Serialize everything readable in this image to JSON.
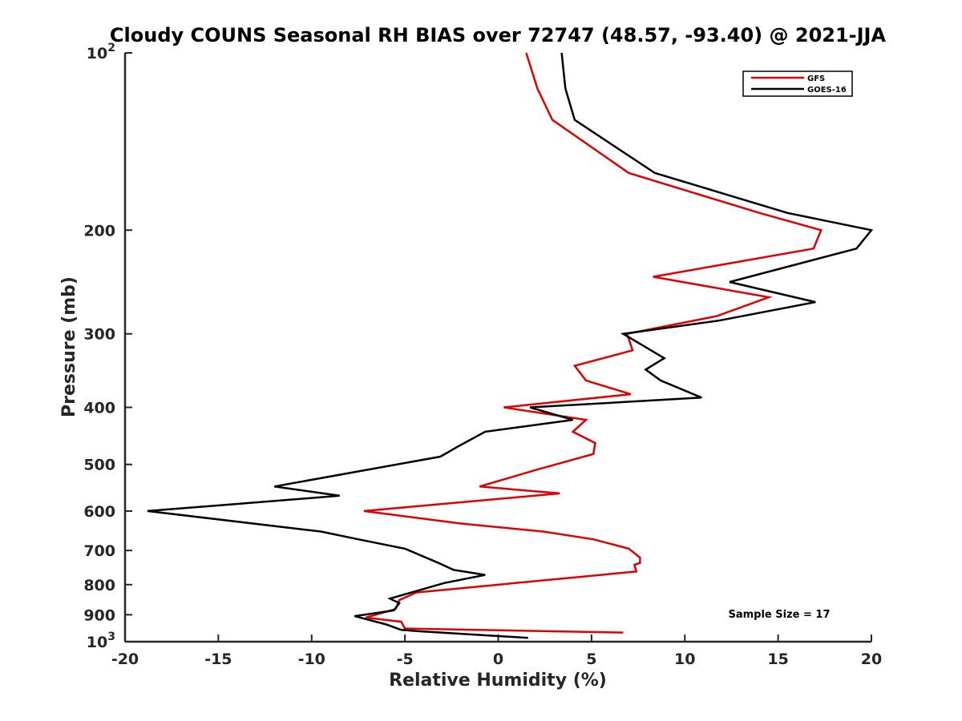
{
  "chart_data": {
    "type": "line",
    "title": "Cloudy COUNS Seasonal RH BIAS over 72747 (48.57, -93.40) @ 2021-JJA",
    "xlabel": "Relative Humidity (%)",
    "ylabel": "Pressure (mb)",
    "xlim": [
      -20,
      20
    ],
    "ylim": [
      100,
      1000
    ],
    "yscale": "log",
    "y_reversed": true,
    "grid": false,
    "legend_position": "top-right",
    "x_ticks": [
      -20,
      -15,
      -10,
      -5,
      0,
      5,
      10,
      15,
      20
    ],
    "x_tick_labels": [
      "-20",
      "-15",
      "-10",
      "-5",
      "0",
      "5",
      "10",
      "15",
      "20"
    ],
    "y_ticks": [
      {
        "value": 100,
        "base": "10",
        "exp": "2"
      },
      {
        "value": 200,
        "label": "200"
      },
      {
        "value": 300,
        "label": "300"
      },
      {
        "value": 400,
        "label": "400"
      },
      {
        "value": 500,
        "label": "500"
      },
      {
        "value": 600,
        "label": "600"
      },
      {
        "value": 700,
        "label": "700"
      },
      {
        "value": 800,
        "label": "800"
      },
      {
        "value": 900,
        "label": "900"
      },
      {
        "value": 1000,
        "base": "10",
        "exp": "3"
      }
    ],
    "series": [
      {
        "name": "GFS",
        "color": "#e00000",
        "points": [
          {
            "x": 1.5,
            "p": 100
          },
          {
            "x": 2.1,
            "p": 115
          },
          {
            "x": 2.9,
            "p": 130
          },
          {
            "x": 7.0,
            "p": 160
          },
          {
            "x": 14.0,
            "p": 187
          },
          {
            "x": 17.3,
            "p": 200
          },
          {
            "x": 16.9,
            "p": 215
          },
          {
            "x": 8.3,
            "p": 240
          },
          {
            "x": 14.5,
            "p": 260
          },
          {
            "x": 11.7,
            "p": 280
          },
          {
            "x": 6.9,
            "p": 300
          },
          {
            "x": 7.2,
            "p": 320
          },
          {
            "x": 4.1,
            "p": 340
          },
          {
            "x": 4.7,
            "p": 360
          },
          {
            "x": 7.1,
            "p": 380
          },
          {
            "x": 0.3,
            "p": 400
          },
          {
            "x": 4.7,
            "p": 420
          },
          {
            "x": 4.0,
            "p": 440
          },
          {
            "x": 5.2,
            "p": 460
          },
          {
            "x": 5.1,
            "p": 480
          },
          {
            "x": 2.1,
            "p": 510
          },
          {
            "x": -1.0,
            "p": 545
          },
          {
            "x": 3.3,
            "p": 560
          },
          {
            "x": -7.2,
            "p": 600
          },
          {
            "x": -2.0,
            "p": 630
          },
          {
            "x": 2.4,
            "p": 650
          },
          {
            "x": 5.1,
            "p": 670
          },
          {
            "x": 7.0,
            "p": 695
          },
          {
            "x": 7.6,
            "p": 720
          },
          {
            "x": 7.6,
            "p": 735
          },
          {
            "x": 7.3,
            "p": 740
          },
          {
            "x": 7.4,
            "p": 760
          },
          {
            "x": -4.4,
            "p": 825
          },
          {
            "x": -5.3,
            "p": 850
          },
          {
            "x": -5.5,
            "p": 880
          },
          {
            "x": -7.1,
            "p": 910
          },
          {
            "x": -5.2,
            "p": 925
          },
          {
            "x": -5.0,
            "p": 950
          },
          {
            "x": 6.7,
            "p": 965
          }
        ]
      },
      {
        "name": "GOES-16",
        "color": "#000000",
        "points": [
          {
            "x": 3.4,
            "p": 100
          },
          {
            "x": 3.6,
            "p": 115
          },
          {
            "x": 4.1,
            "p": 130
          },
          {
            "x": 8.4,
            "p": 160
          },
          {
            "x": 15.5,
            "p": 187
          },
          {
            "x": 20.0,
            "p": 200
          },
          {
            "x": 19.2,
            "p": 215
          },
          {
            "x": 12.4,
            "p": 245
          },
          {
            "x": 17.0,
            "p": 265
          },
          {
            "x": 11.8,
            "p": 285
          },
          {
            "x": 6.7,
            "p": 300
          },
          {
            "x": 8.9,
            "p": 330
          },
          {
            "x": 7.9,
            "p": 345
          },
          {
            "x": 8.7,
            "p": 360
          },
          {
            "x": 10.9,
            "p": 385
          },
          {
            "x": 1.7,
            "p": 400
          },
          {
            "x": 4.0,
            "p": 420
          },
          {
            "x": -0.7,
            "p": 440
          },
          {
            "x": -2.1,
            "p": 465
          },
          {
            "x": -3.1,
            "p": 485
          },
          {
            "x": -12.0,
            "p": 545
          },
          {
            "x": -8.5,
            "p": 565
          },
          {
            "x": -18.8,
            "p": 600
          },
          {
            "x": -9.5,
            "p": 650
          },
          {
            "x": -7.5,
            "p": 670
          },
          {
            "x": -5.0,
            "p": 695
          },
          {
            "x": -3.2,
            "p": 735
          },
          {
            "x": -2.4,
            "p": 755
          },
          {
            "x": -0.7,
            "p": 770
          },
          {
            "x": -2.9,
            "p": 795
          },
          {
            "x": -5.8,
            "p": 845
          },
          {
            "x": -5.3,
            "p": 860
          },
          {
            "x": -5.6,
            "p": 885
          },
          {
            "x": -7.7,
            "p": 905
          },
          {
            "x": -6.0,
            "p": 935
          },
          {
            "x": -5.2,
            "p": 955
          },
          {
            "x": -4.2,
            "p": 960
          },
          {
            "x": 1.6,
            "p": 985
          }
        ]
      }
    ],
    "annotations": [
      {
        "text": "Sample Size = 17"
      }
    ]
  }
}
